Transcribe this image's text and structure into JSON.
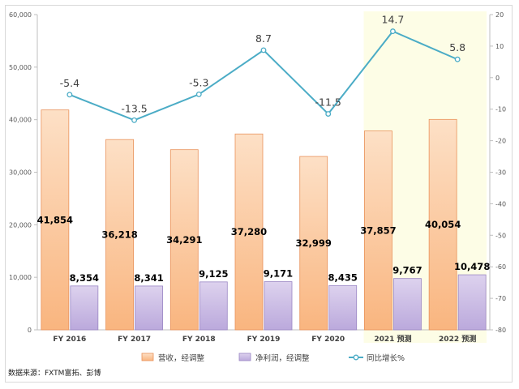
{
  "chart_data": {
    "type": "bar",
    "categories": [
      "FY 2016",
      "FY 2017",
      "FY 2018",
      "FY 2019",
      "FY 2020",
      "2021 预测",
      "2022 预测"
    ],
    "series": [
      {
        "name": "营收，经调整",
        "type": "bar",
        "axis": "left",
        "color": "#f8b886",
        "values": [
          41854,
          36218,
          34291,
          37280,
          32999,
          37857,
          40054
        ],
        "labels": [
          "41,854",
          "36,218",
          "34,291",
          "37,280",
          "32,999",
          "37,857",
          "40,054"
        ]
      },
      {
        "name": "净利润，经调整",
        "type": "bar",
        "axis": "left",
        "color": "#b9a6da",
        "values": [
          8354,
          8341,
          9125,
          9171,
          8435,
          9767,
          10478
        ],
        "labels": [
          "8,354",
          "8,341",
          "9,125",
          "9,171",
          "8,435",
          "9,767",
          "10,478"
        ]
      },
      {
        "name": "同比增长%",
        "type": "line",
        "axis": "right",
        "color": "#4bacc6",
        "values": [
          -5.4,
          -13.5,
          -5.3,
          8.7,
          -11.5,
          14.7,
          5.8
        ],
        "labels": [
          "-5.4",
          "-13.5",
          "-5.3",
          "8.7",
          "-11.5",
          "14.7",
          "5.8"
        ]
      }
    ],
    "y_left": {
      "min": 0,
      "max": 60000,
      "ticks": [
        "0",
        "10,000",
        "20,000",
        "30,000",
        "40,000",
        "50,000",
        "60,000"
      ]
    },
    "y_right": {
      "min": -80,
      "max": 20,
      "ticks": [
        "-80",
        "-70",
        "-60",
        "-50",
        "-40",
        "-30",
        "-20",
        "-10",
        "0",
        "10",
        "20"
      ]
    },
    "highlight_categories": [
      "2021 预测",
      "2022 预测"
    ],
    "highlight_color": "#fdfde6",
    "grid": false,
    "legend_position": "bottom"
  },
  "source": "数据来源：FXTM富拓、彭博"
}
